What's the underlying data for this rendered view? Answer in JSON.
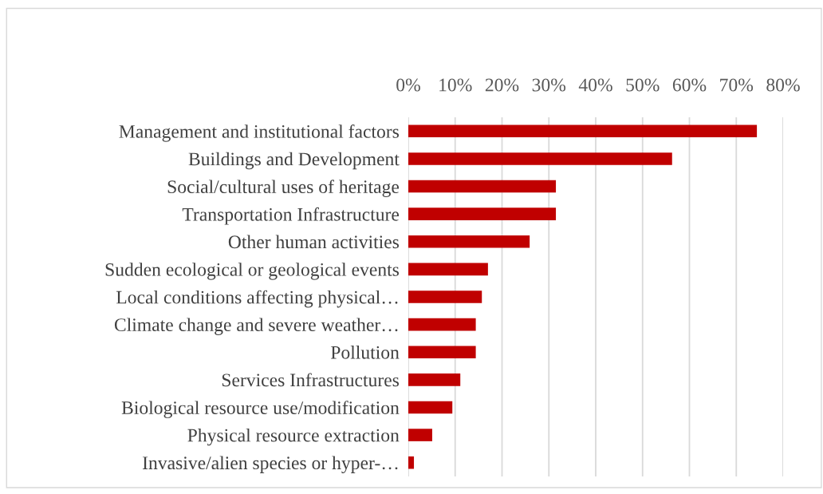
{
  "chart_data": {
    "type": "bar",
    "orientation": "horizontal",
    "categories": [
      "Management and institutional factors",
      "Buildings and Development",
      "Social/cultural uses of heritage",
      "Transportation Infrastructure",
      "Other human activities",
      "Sudden ecological or geological events",
      "Local conditions affecting physical…",
      "Climate change and severe weather…",
      "Pollution",
      "Services Infrastructures",
      "Biological resource use/modification",
      "Physical resource extraction",
      "Invasive/alien species or hyper-…"
    ],
    "values": [
      74.4,
      56.3,
      31.5,
      31.5,
      25.9,
      17.0,
      15.7,
      14.4,
      14.4,
      11.1,
      9.4,
      5.1,
      1.2
    ],
    "color": "#c00000",
    "xlim": [
      0,
      80
    ],
    "xticks": [
      {
        "value": 0,
        "label": "0%"
      },
      {
        "value": 10,
        "label": "10%"
      },
      {
        "value": 20,
        "label": "20%"
      },
      {
        "value": 30,
        "label": "30%"
      },
      {
        "value": 40,
        "label": "40%"
      },
      {
        "value": 50,
        "label": "50%"
      },
      {
        "value": 60,
        "label": "60%"
      },
      {
        "value": 70,
        "label": "70%"
      },
      {
        "value": 80,
        "label": "80%"
      }
    ],
    "grid": "x"
  }
}
